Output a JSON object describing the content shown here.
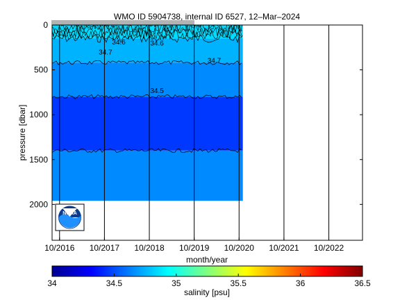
{
  "chart_data": {
    "type": "heatmap",
    "title": "WMO ID 5904738, internal ID 6527, 12–Mar–2024",
    "xlabel": "month/year",
    "ylabel": "pressure [dbar]",
    "x_ticks": [
      "10/2016",
      "10/2017",
      "10/2018",
      "10/2019",
      "10/2020",
      "10/2021",
      "10/2022"
    ],
    "x_range": [
      "2016-08",
      "2023-07"
    ],
    "ylim": [
      2400,
      0
    ],
    "y_reversed": true,
    "y_ticks": [
      0,
      500,
      1000,
      1500,
      2000
    ],
    "profile_date_range": [
      "2016-08",
      "2020-11"
    ],
    "max_pressure_dbar": 1960,
    "vertical_lines_at": [
      "2016-10",
      "2017-10",
      "2018-10",
      "2019-10",
      "2020-10",
      "2021-10",
      "2022-10"
    ],
    "contour_labels": [
      "34.6",
      "34.6",
      "34.7",
      "34.5",
      "34.7"
    ],
    "salinity_layers": [
      {
        "top_dbar": 0,
        "bottom_dbar": 150,
        "salinity_psu": 34.85
      },
      {
        "top_dbar": 150,
        "bottom_dbar": 420,
        "salinity_psu": 34.75
      },
      {
        "top_dbar": 420,
        "bottom_dbar": 800,
        "salinity_psu": 34.65
      },
      {
        "top_dbar": 800,
        "bottom_dbar": 1400,
        "salinity_psu": 34.45
      },
      {
        "top_dbar": 1400,
        "bottom_dbar": 1960,
        "salinity_psu": 34.65
      }
    ],
    "colorbar": {
      "label": "salinity [psu]",
      "range": [
        34,
        36.5
      ],
      "ticks": [
        "34",
        "34.5",
        "35",
        "35.5",
        "36",
        "36.5"
      ],
      "colormap": "jet"
    },
    "logo_text": "NOAA"
  }
}
